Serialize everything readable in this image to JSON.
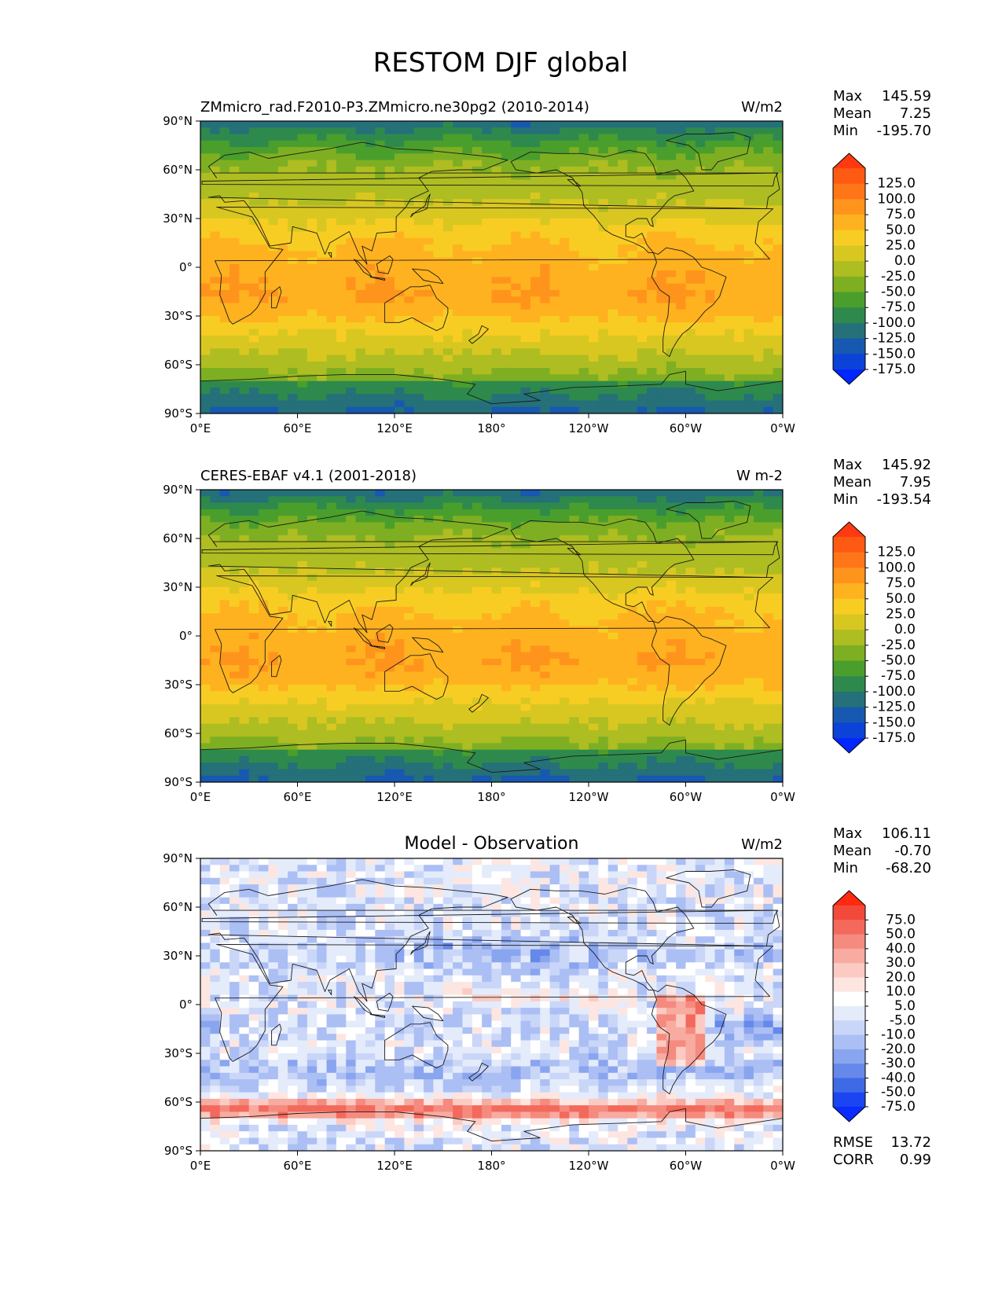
{
  "figure": {
    "title": "RESTOM DJF global"
  },
  "axes": {
    "lat_ticks": [
      "90°N",
      "60°N",
      "30°N",
      "0°",
      "30°S",
      "60°S",
      "90°S"
    ],
    "lon_ticks": [
      "0°E",
      "60°E",
      "120°E",
      "180°",
      "120°W",
      "60°W",
      "0°W"
    ]
  },
  "chart_data": [
    {
      "type": "heatmap",
      "variable": "RESTOM",
      "title": "ZMmicro_rad.F2010-P3.ZMmicro.ne30pg2 (2010-2014)",
      "units": "W/m2",
      "xlim": [
        0,
        360
      ],
      "ylim": [
        -90,
        90
      ],
      "stats": {
        "max": {
          "label": "Max",
          "value": "145.59"
        },
        "mean": {
          "label": "Mean",
          "value": "7.25"
        },
        "min": {
          "label": "Min",
          "value": "-195.70"
        }
      },
      "colorbar": {
        "levels": [
          "125.0",
          "100.0",
          "75.0",
          "50.0",
          "25.0",
          "0.0",
          "-25.0",
          "-50.0",
          "-75.0",
          "-100.0",
          "-125.0",
          "-150.0",
          "-175.0"
        ],
        "colors": [
          "#ff3a10",
          "#ff5a14",
          "#ff7618",
          "#ff941c",
          "#ffb21f",
          "#f8cd23",
          "#d9c721",
          "#aebd21",
          "#7eaf22",
          "#4a9e2c",
          "#2e8a4c",
          "#257079",
          "#1758b0",
          "#0b42d8",
          "#0027ff"
        ]
      }
    },
    {
      "type": "heatmap",
      "variable": "RESTOM",
      "title": "CERES-EBAF v4.1 (2001-2018)",
      "units": "W m-2",
      "xlim": [
        0,
        360
      ],
      "ylim": [
        -90,
        90
      ],
      "stats": {
        "max": {
          "label": "Max",
          "value": "145.92"
        },
        "mean": {
          "label": "Mean",
          "value": "7.95"
        },
        "min": {
          "label": "Min",
          "value": "-193.54"
        }
      },
      "colorbar": {
        "levels": [
          "125.0",
          "100.0",
          "75.0",
          "50.0",
          "25.0",
          "0.0",
          "-25.0",
          "-50.0",
          "-75.0",
          "-100.0",
          "-125.0",
          "-150.0",
          "-175.0"
        ],
        "colors": [
          "#ff3a10",
          "#ff5a14",
          "#ff7618",
          "#ff941c",
          "#ffb21f",
          "#f8cd23",
          "#d9c721",
          "#aebd21",
          "#7eaf22",
          "#4a9e2c",
          "#2e8a4c",
          "#257079",
          "#1758b0",
          "#0b42d8",
          "#0027ff"
        ]
      }
    },
    {
      "type": "heatmap",
      "variable": "RESTOM difference",
      "title": "Model - Observation",
      "units": "W/m2",
      "xlim": [
        0,
        360
      ],
      "ylim": [
        -90,
        90
      ],
      "stats": {
        "max": {
          "label": "Max",
          "value": "106.11"
        },
        "mean": {
          "label": "Mean",
          "value": "-0.70"
        },
        "min": {
          "label": "Min",
          "value": "-68.20"
        }
      },
      "metrics": {
        "rmse": {
          "label": "RMSE",
          "value": "13.72"
        },
        "corr": {
          "label": "CORR",
          "value": "0.99"
        }
      },
      "colorbar": {
        "levels": [
          "75.0",
          "50.0",
          "40.0",
          "30.0",
          "20.0",
          "10.0",
          "5.0",
          "-5.0",
          "-10.0",
          "-20.0",
          "-30.0",
          "-40.0",
          "-50.0",
          "-75.0"
        ],
        "colors": [
          "#ff2a10",
          "#f24a3a",
          "#f3695c",
          "#f58a7e",
          "#f8aba0",
          "#fbcac2",
          "#fde6e1",
          "#ffffff",
          "#e4ebfb",
          "#c9d6f8",
          "#abbff4",
          "#8aa5ef",
          "#6588ea",
          "#3f6ae6",
          "#1a45f0",
          "#0a2cff"
        ]
      }
    }
  ]
}
